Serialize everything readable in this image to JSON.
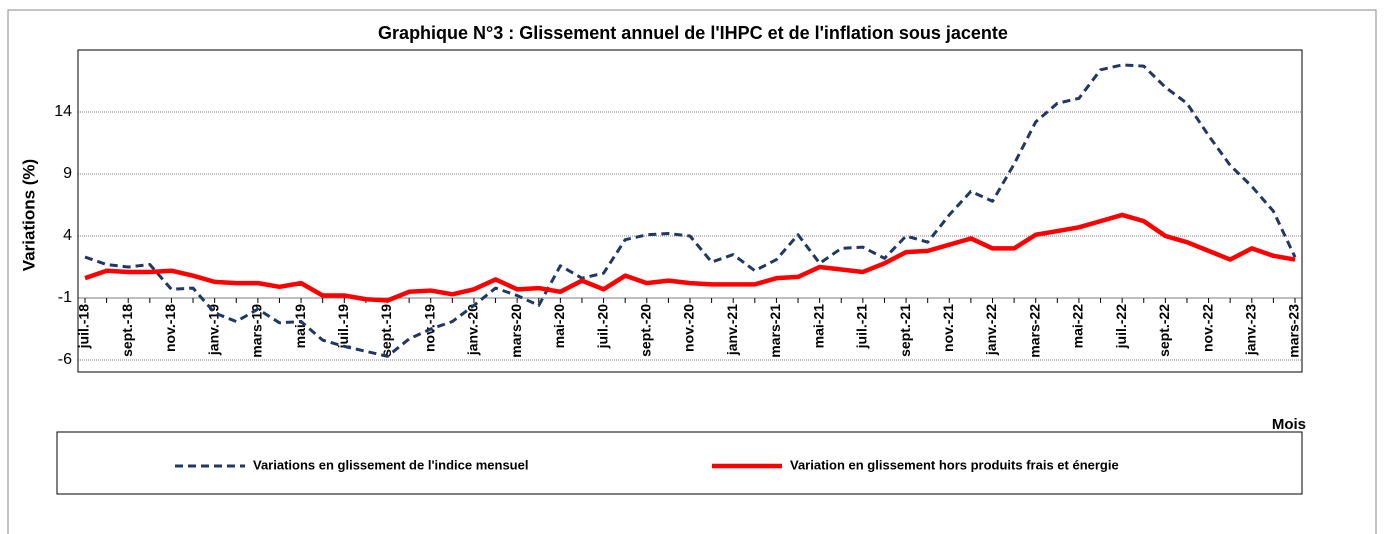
{
  "chart_data": {
    "type": "line",
    "title": "Graphique N°3 : Glissement annuel de l'IHPC et de l'inflation sous jacente",
    "y_label": "Variations (%)",
    "x_label": "Mois",
    "ylim": [
      -6,
      19
    ],
    "yticks": [
      -6,
      -1,
      4,
      9,
      14
    ],
    "grid": true,
    "categories": [
      "juil.-18",
      null,
      "sept.-18",
      null,
      "nov.-18",
      null,
      "janv.-19",
      null,
      "mars-19",
      null,
      "mai-19",
      null,
      "juil.-19",
      null,
      "sept.-19",
      null,
      "nov.-19",
      null,
      "janv.-20",
      null,
      "mars-20",
      null,
      "mai-20",
      null,
      "juil.-20",
      null,
      "sept.-20",
      null,
      "nov.-20",
      null,
      "janv.-21",
      null,
      "mars-21",
      null,
      "mai-21",
      null,
      "juil.-21",
      null,
      "sept.-21",
      null,
      "nov.-21",
      null,
      "janv.-22",
      null,
      "mars-22",
      null,
      "mai-22",
      null,
      "juil.-22",
      null,
      "sept.-22",
      null,
      "nov.-22",
      null,
      "janv.-23",
      null,
      "mars-23"
    ],
    "series": [
      {
        "name": "Variations en glissement de l'indice mensuel",
        "color": "#1f3864",
        "dashed": true,
        "values": [
          2.3,
          1.7,
          1.5,
          1.7,
          -0.3,
          -0.2,
          -2.2,
          -2.9,
          -1.9,
          -3.0,
          -2.9,
          -4.4,
          -4.9,
          -5.3,
          -5.7,
          -4.3,
          -3.5,
          -2.9,
          -1.6,
          -0.2,
          -0.8,
          -1.6,
          1.6,
          0.6,
          1.0,
          3.7,
          4.1,
          4.2,
          4.0,
          1.9,
          2.5,
          1.2,
          2.1,
          4.1,
          1.8,
          3.0,
          3.1,
          2.2,
          4.0,
          3.5,
          5.7,
          7.6,
          6.8,
          9.8,
          13.2,
          14.7,
          15.1,
          17.4,
          17.8,
          17.7,
          16.0,
          14.7,
          12.1,
          9.7,
          8.0,
          6.0,
          2.3
        ]
      },
      {
        "name": "Variation en glissement hors produits frais et énergie",
        "color": "#ff0000",
        "dashed": false,
        "values": [
          0.6,
          1.2,
          1.1,
          1.1,
          1.2,
          0.8,
          0.3,
          0.2,
          0.2,
          -0.1,
          0.2,
          -0.8,
          -0.8,
          -1.1,
          -1.2,
          -0.5,
          -0.4,
          -0.7,
          -0.3,
          0.5,
          -0.3,
          -0.2,
          -0.5,
          0.4,
          -0.3,
          0.8,
          0.2,
          0.4,
          0.2,
          0.1,
          0.1,
          0.1,
          0.6,
          0.7,
          1.5,
          1.3,
          1.1,
          1.8,
          2.7,
          2.8,
          3.3,
          3.8,
          3.0,
          3.0,
          4.1,
          4.4,
          4.7,
          5.2,
          5.7,
          5.2,
          4.0,
          3.5,
          2.8,
          2.1,
          3.0,
          2.4,
          2.1
        ]
      }
    ]
  }
}
